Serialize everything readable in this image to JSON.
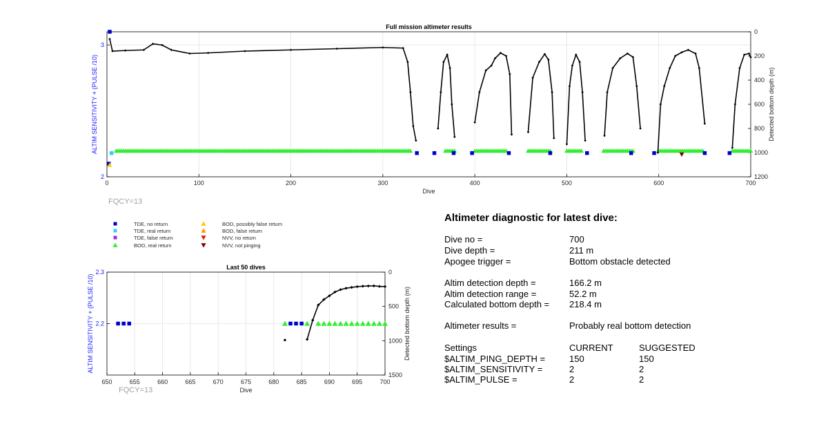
{
  "colors": {
    "tde_no_return": "#0000cc",
    "tde_real_return": "#33ccff",
    "tde_false_return": "#9933cc",
    "bod_real_return": "#33ee33",
    "bod_possibly_false": "#ffcc00",
    "bod_false_return": "#ff9900",
    "nvv_no_return": "#dd2200",
    "nvv_not_pinging": "#8b0000",
    "left_axis": "#1a1aff"
  },
  "fqcy_label": "FQCY=13",
  "legend": {
    "items": [
      {
        "label": "TDE, no return",
        "icon": "square-marker",
        "color_key": "tde_no_return"
      },
      {
        "label": "TDE, real return",
        "icon": "square-marker",
        "color_key": "tde_real_return"
      },
      {
        "label": "TDE, false return",
        "icon": "square-marker",
        "color_key": "tde_false_return"
      },
      {
        "label": "BOD, real return",
        "icon": "triangle-up-marker",
        "color_key": "bod_real_return"
      },
      {
        "label": "BOD, possibly false return",
        "icon": "triangle-up-marker",
        "color_key": "bod_possibly_false"
      },
      {
        "label": "BOD, false return",
        "icon": "triangle-up-marker",
        "color_key": "bod_false_return"
      },
      {
        "label": "NVV, no return",
        "icon": "triangle-down-marker",
        "color_key": "nvv_no_return"
      },
      {
        "label": "NVV, not pinging",
        "icon": "triangle-down-marker",
        "color_key": "nvv_not_pinging"
      }
    ]
  },
  "diagnostic": {
    "title": "Altimeter diagnostic for latest dive:",
    "rows": [
      {
        "label": "Dive no =",
        "value": "700"
      },
      {
        "label": "Dive depth =",
        "value": "211 m"
      },
      {
        "label": "Apogee trigger =",
        "value": "Bottom obstacle detected"
      },
      {
        "label": "Altim detection depth =",
        "value": "166.2 m"
      },
      {
        "label": "Altim detection range =",
        "value": "52.2 m"
      },
      {
        "label": "Calculated bottom depth =",
        "value": "218.4 m"
      },
      {
        "label": "Altimeter results =",
        "value": "Probably real bottom detection"
      }
    ],
    "settings": {
      "header": {
        "label": "Settings",
        "current": "CURRENT",
        "suggested": "SUGGESTED"
      },
      "rows": [
        {
          "label": "$ALTIM_PING_DEPTH =",
          "current": "150",
          "suggested": "150"
        },
        {
          "label": "$ALTIM_SENSITIVITY =",
          "current": "2",
          "suggested": "2"
        },
        {
          "label": "$ALTIM_PULSE =",
          "current": "2",
          "suggested": "2"
        }
      ]
    }
  },
  "chart_data": [
    {
      "type": "line",
      "title": "Full mission altimeter results",
      "xlabel": "Dive",
      "ylabel": "ALTIM SENSITIVITY + (PULSE /10)",
      "y2label": "Detected bottom depth (m)",
      "xlim": [
        0,
        700
      ],
      "ylim": [
        2,
        3.1
      ],
      "y2lim": [
        0,
        1200
      ],
      "y2_reversed": true,
      "xticks": [
        0,
        100,
        200,
        300,
        400,
        500,
        600,
        700
      ],
      "yticks": [
        2,
        3
      ],
      "y2ticks": [
        0,
        200,
        400,
        600,
        800,
        1000,
        1200
      ],
      "grid": true,
      "series": [
        {
          "axis": "right",
          "segments": [
            [
              [
                3,
                60
              ],
              [
                6,
                160
              ],
              [
                20,
                155
              ],
              [
                40,
                150
              ],
              [
                50,
                100
              ],
              [
                60,
                110
              ],
              [
                70,
                150
              ],
              [
                90,
                180
              ],
              [
                110,
                175
              ],
              [
                150,
                160
              ],
              [
                200,
                150
              ],
              [
                250,
                140
              ],
              [
                300,
                130
              ],
              [
                322,
                135
              ],
              [
                327,
                250
              ],
              [
                330,
                500
              ],
              [
                333,
                780
              ],
              [
                336,
                900
              ]
            ],
            [
              [
                360,
                800
              ],
              [
                363,
                500
              ],
              [
                366,
                250
              ],
              [
                370,
                190
              ],
              [
                373,
                300
              ],
              [
                375,
                600
              ],
              [
                378,
                870
              ]
            ],
            [
              [
                400,
                750
              ],
              [
                405,
                500
              ],
              [
                412,
                320
              ],
              [
                418,
                280
              ],
              [
                422,
                220
              ],
              [
                428,
                175
              ],
              [
                434,
                200
              ],
              [
                438,
                350
              ],
              [
                440,
                850
              ]
            ],
            [
              [
                458,
                830
              ],
              [
                463,
                380
              ],
              [
                470,
                250
              ],
              [
                476,
                185
              ],
              [
                480,
                230
              ],
              [
                484,
                500
              ],
              [
                486,
                880
              ]
            ],
            [
              [
                500,
                930
              ],
              [
                503,
                450
              ],
              [
                506,
                280
              ],
              [
                510,
                190
              ],
              [
                514,
                250
              ],
              [
                517,
                500
              ],
              [
                520,
                900
              ]
            ],
            [
              [
                541,
                860
              ],
              [
                544,
                500
              ],
              [
                550,
                300
              ],
              [
                558,
                220
              ],
              [
                566,
                180
              ],
              [
                572,
                210
              ],
              [
                576,
                450
              ],
              [
                580,
                800
              ]
            ],
            [
              [
                599,
                1000
              ],
              [
                602,
                600
              ],
              [
                606,
                450
              ],
              [
                612,
                300
              ],
              [
                618,
                200
              ],
              [
                625,
                170
              ],
              [
                632,
                150
              ],
              [
                640,
                180
              ],
              [
                644,
                300
              ],
              [
                650,
                760
              ]
            ],
            [
              [
                680,
                960
              ],
              [
                683,
                600
              ],
              [
                688,
                300
              ],
              [
                693,
                190
              ],
              [
                698,
                180
              ],
              [
                700,
                211
              ]
            ]
          ]
        },
        {
          "name": "BOD, real return",
          "axis": "right",
          "depth": 985,
          "x_ranges": [
            [
              10,
              330
            ],
            [
              368,
              378
            ],
            [
              400,
              435
            ],
            [
              458,
              482
            ],
            [
              500,
              516
            ],
            [
              540,
              572
            ],
            [
              600,
              648
            ],
            [
              680,
              700
            ]
          ]
        },
        {
          "name": "TDE, no return",
          "axis": "left",
          "points": [
            [
              3,
              3.1
            ],
            [
              2,
              2.1
            ],
            [
              337,
              2.18
            ],
            [
              356,
              2.18
            ],
            [
              377,
              2.18
            ],
            [
              397,
              2.18
            ],
            [
              437,
              2.18
            ],
            [
              482,
              2.18
            ],
            [
              522,
              2.18
            ],
            [
              570,
              2.18
            ],
            [
              595,
              2.18
            ],
            [
              650,
              2.18
            ],
            [
              677,
              2.18
            ]
          ]
        },
        {
          "name": "TDE, real return",
          "axis": "left",
          "points": [
            [
              5,
              2.18
            ]
          ]
        },
        {
          "name": "BOD, possibly false return",
          "axis": "left",
          "points": [
            [
              3,
              2.09
            ]
          ]
        },
        {
          "name": "NVV, not pinging",
          "axis": "left",
          "points": [
            [
              625,
              2.17
            ]
          ]
        }
      ]
    },
    {
      "type": "line",
      "title": "Last 50 dives",
      "xlabel": "Dive",
      "ylabel": "ALTIM SENSITIVITY + (PULSE /10)",
      "y2label": "Detected bottom depth (m)",
      "xlim": [
        650,
        700
      ],
      "ylim": [
        2.1,
        2.3
      ],
      "y2lim": [
        0,
        1500
      ],
      "y2_reversed": true,
      "xticks": [
        650,
        655,
        660,
        665,
        670,
        675,
        680,
        685,
        690,
        695,
        700
      ],
      "yticks": [
        2.2,
        2.3
      ],
      "y2ticks": [
        0,
        500,
        1000,
        1500
      ],
      "grid": true,
      "series": [
        {
          "name": "TDE, no return",
          "axis": "left",
          "x": [
            652,
            653,
            654,
            683,
            684,
            685
          ],
          "y": [
            2.2,
            2.2,
            2.2,
            2.2,
            2.2,
            2.2
          ]
        },
        {
          "name": "BOD, real return",
          "axis": "left",
          "x": [
            682,
            686,
            688,
            689,
            690,
            691,
            692,
            693,
            694,
            695,
            696,
            697,
            698,
            699,
            700
          ],
          "y": [
            2.2,
            2.2,
            2.2,
            2.2,
            2.2,
            2.2,
            2.2,
            2.2,
            2.2,
            2.2,
            2.2,
            2.2,
            2.2,
            2.2,
            2.2
          ]
        },
        {
          "name": "Detected bottom depth",
          "axis": "right",
          "x": [
            682
          ],
          "y": [
            990
          ]
        },
        {
          "name": "Detected bottom depth",
          "axis": "right",
          "x": [
            686,
            687,
            688,
            689,
            690,
            691,
            692,
            693,
            694,
            695,
            696,
            697,
            698,
            699,
            700
          ],
          "y": [
            980,
            700,
            480,
            400,
            345,
            290,
            255,
            235,
            222,
            212,
            205,
            202,
            200,
            208,
            211
          ]
        }
      ]
    }
  ]
}
